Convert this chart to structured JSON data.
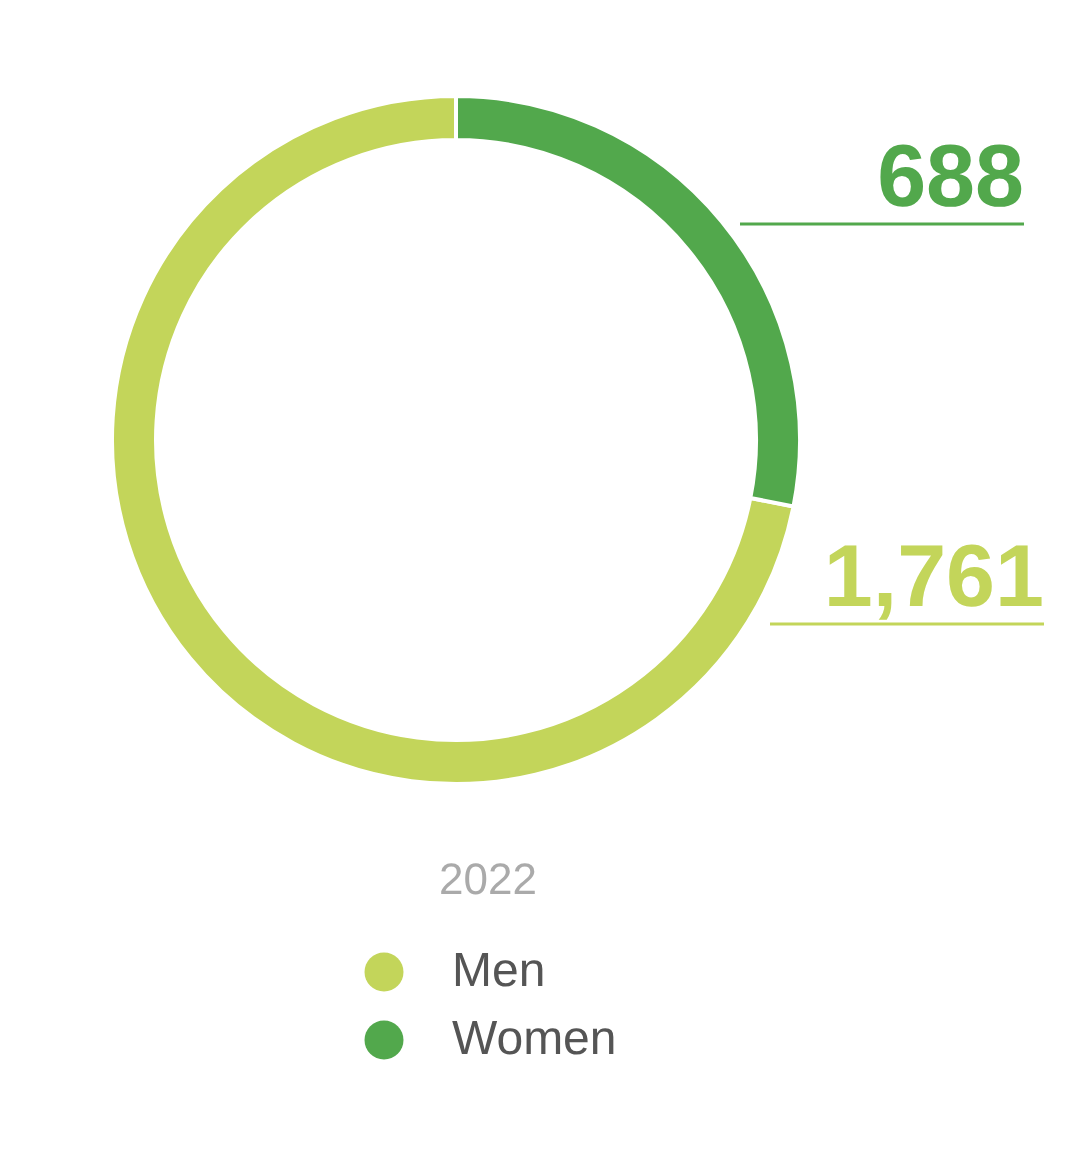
{
  "chart_data": {
    "type": "donut",
    "categories": [
      "Men",
      "Women"
    ],
    "values": [
      1761,
      688
    ],
    "colors": [
      "#c3d55a",
      "#52a84c"
    ],
    "data_labels": true,
    "value_labels": [
      "1,761",
      "688"
    ],
    "legend_title": "2022",
    "legend": "bottom"
  }
}
